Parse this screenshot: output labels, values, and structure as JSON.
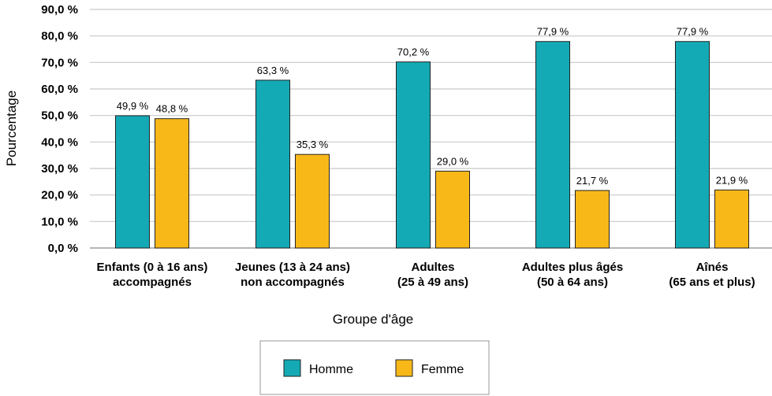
{
  "chart_data": {
    "type": "bar",
    "ylabel": "Pourcentage",
    "xlabel": "Groupe d'âge",
    "ylim": [
      0,
      90
    ],
    "y_ticks": [
      "0,0 %",
      "10,0 %",
      "20,0 %",
      "30,0 %",
      "40,0 %",
      "50,0 %",
      "60,0 %",
      "70,0 %",
      "80,0 %",
      "90,0 %"
    ],
    "categories": [
      [
        "Enfants (0 à 16 ans)",
        "accompagnés"
      ],
      [
        "Jeunes (13 à 24 ans)",
        "non accompagnés"
      ],
      [
        "Adultes",
        "(25 à 49 ans)"
      ],
      [
        "Adultes plus âgés",
        "(50 à 64 ans)"
      ],
      [
        "Aînés",
        "(65 ans et plus)"
      ]
    ],
    "series": [
      {
        "name": "Homme",
        "color": "#13aab5",
        "values": [
          49.9,
          63.3,
          70.2,
          77.9,
          77.9
        ],
        "labels": [
          "49,9 %",
          "63,3 %",
          "70,2 %",
          "77,9 %",
          "77,9 %"
        ]
      },
      {
        "name": "Femme",
        "color": "#f8b818",
        "values": [
          48.8,
          35.3,
          29.0,
          21.7,
          21.9
        ],
        "labels": [
          "48,8 %",
          "35,3 %",
          "29,0 %",
          "21,7 %",
          "21,9 %"
        ]
      }
    ],
    "grid": true,
    "legend_position": "bottom-center"
  }
}
